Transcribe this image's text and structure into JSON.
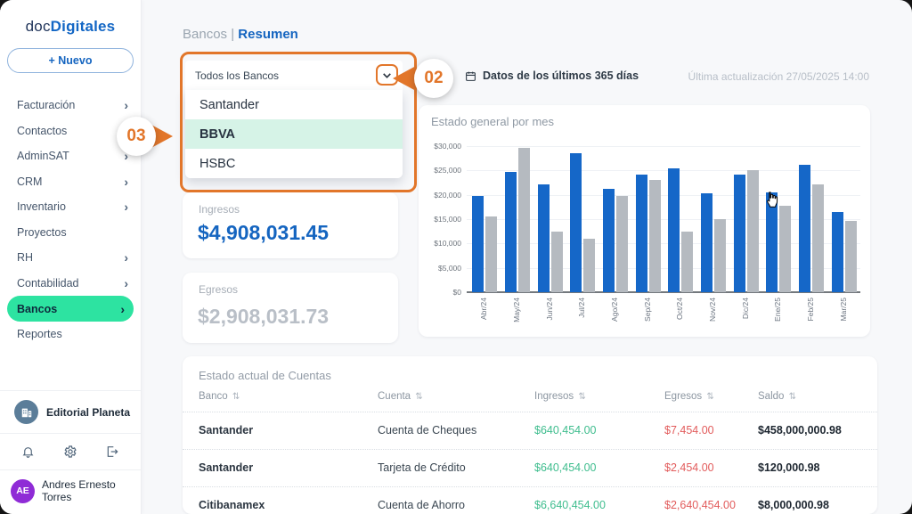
{
  "app": {
    "brand_prefix": "doc",
    "brand_suffix": "Digitales"
  },
  "sidebar": {
    "new_button": "+ Nuevo",
    "items": [
      {
        "label": "Facturación",
        "chevron": true,
        "active": false
      },
      {
        "label": "Contactos",
        "chevron": true,
        "active": false
      },
      {
        "label": "AdminSAT",
        "chevron": true,
        "active": false
      },
      {
        "label": "CRM",
        "chevron": true,
        "active": false
      },
      {
        "label": "Inventario",
        "chevron": true,
        "active": false
      },
      {
        "label": "Proyectos",
        "chevron": false,
        "active": false
      },
      {
        "label": "RH",
        "chevron": true,
        "active": false
      },
      {
        "label": "Contabilidad",
        "chevron": true,
        "active": false
      },
      {
        "label": "Bancos",
        "chevron": true,
        "active": true
      },
      {
        "label": "Reportes",
        "chevron": false,
        "active": false
      }
    ],
    "company": "Editorial Planeta",
    "user": {
      "initials": "AE",
      "name": "Andres Ernesto Torres"
    }
  },
  "header": {
    "breadcrumb_section": "Bancos",
    "breadcrumb_divider": "|",
    "breadcrumb_current": "Resumen",
    "date_filter": "Datos de los últimos 365 días",
    "last_update": "Última actualización 27/05/2025 14:00"
  },
  "bank_filter": {
    "value": "Todos los Bancos",
    "options": [
      {
        "label": "Santander",
        "highlighted": false
      },
      {
        "label": "BBVA",
        "highlighted": true
      },
      {
        "label": "HSBC",
        "highlighted": false
      }
    ]
  },
  "annotations": {
    "step2": "02",
    "step3": "03"
  },
  "cards": {
    "ingresos": {
      "label": "Ingresos",
      "value": "$4,908,031.45"
    },
    "egresos": {
      "label": "Egresos",
      "value": "$2,908,031.73"
    }
  },
  "chart_data": {
    "type": "bar",
    "title": "Estado general por mes",
    "categories": [
      "Abr/24",
      "May/24",
      "Jun/24",
      "Jul/24",
      "Ago/24",
      "Sep/24",
      "Oct/24",
      "Nov/24",
      "Dic/24",
      "Ene/25",
      "Feb/25",
      "Mar/25"
    ],
    "series": [
      {
        "name": "serie-azul",
        "color": "#1567c8",
        "values": [
          19700,
          24700,
          22200,
          28600,
          21300,
          24200,
          25400,
          20300,
          24200,
          20500,
          26200,
          16400
        ]
      },
      {
        "name": "serie-gris",
        "color": "#b5bac0",
        "values": [
          15500,
          29700,
          12500,
          11000,
          19800,
          23000,
          12500,
          15000,
          25000,
          17800,
          22100,
          14700
        ]
      }
    ],
    "xlabel": "",
    "ylabel": "",
    "ylim": [
      0,
      30000
    ],
    "ytick_step": 5000,
    "ytick_labels": [
      "$0",
      "$5,000",
      "$10,000",
      "$15,000",
      "$20,000",
      "$25,000",
      "$30,000"
    ],
    "grid": true,
    "legend": false
  },
  "table": {
    "title": "Estado actual de Cuentas",
    "columns": [
      "Banco",
      "Cuenta",
      "Ingresos",
      "Egresos",
      "Saldo"
    ],
    "rows": [
      {
        "banco": "Santander",
        "cuenta": "Cuenta de Cheques",
        "ingresos": "$640,454.00",
        "egresos": "$7,454.00",
        "saldo": "$458,000,000.98"
      },
      {
        "banco": "Santander",
        "cuenta": "Tarjeta de Crédito",
        "ingresos": "$640,454.00",
        "egresos": "$2,454.00",
        "saldo": "$120,000.98"
      },
      {
        "banco": "Citibanamex",
        "cuenta": "Cuenta de Ahorro",
        "ingresos": "$6,640,454.00",
        "egresos": "$2,640,454.00",
        "saldo": "$8,000,000.98"
      }
    ]
  },
  "colors": {
    "brand_blue": "#1565c0",
    "active_mint": "#2de3a1",
    "option_mint": "#d6f3e7",
    "annotation_orange": "#e2762a",
    "positive_green": "#3fbd8e",
    "negative_red": "#e25c5c",
    "bar_blue": "#1567c8",
    "bar_gray": "#b5bac0"
  }
}
